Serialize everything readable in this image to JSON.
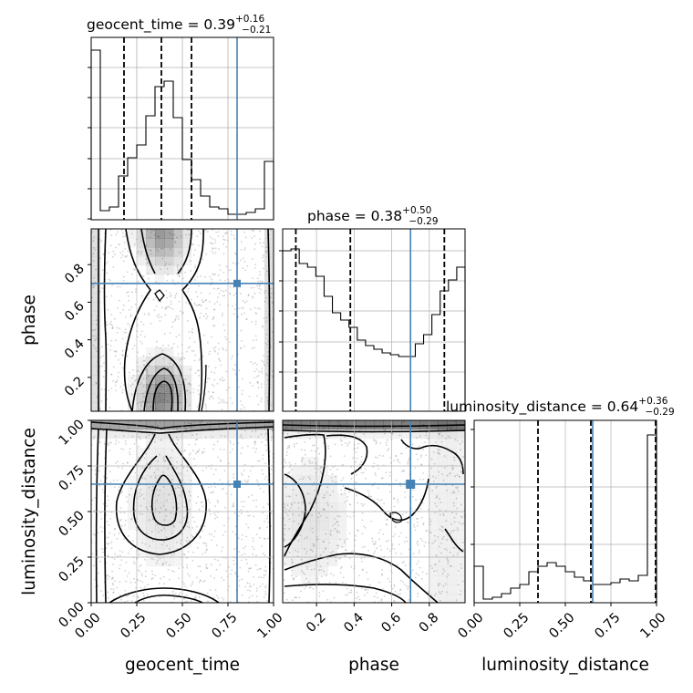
{
  "chart_data": {
    "type": "corner",
    "parameters": [
      "geocent_time",
      "phase",
      "luminosity_distance"
    ],
    "truths": {
      "geocent_time": 0.8,
      "phase": 0.7,
      "luminosity_distance": 0.65
    },
    "titles": {
      "geocent_time": {
        "label": "geocent_time = 0.39",
        "plus": "+0.16",
        "minus": "−0.21"
      },
      "phase": {
        "label": "phase = 0.38",
        "plus": "+0.50",
        "minus": "−0.29"
      },
      "luminosity_distance": {
        "label": "luminosity_distance = 0.64",
        "plus": "+0.36",
        "minus": "−0.29"
      }
    },
    "ranges": {
      "geocent_time": [
        0,
        1
      ],
      "phase": [
        0.02,
        0.99
      ],
      "luminosity_distance": [
        0,
        1
      ]
    },
    "quantiles": {
      "geocent_time": [
        0.18,
        0.385,
        0.55
      ],
      "phase": [
        0.09,
        0.38,
        0.88
      ],
      "luminosity_distance": [
        0.35,
        0.64,
        1.0
      ]
    },
    "ticks": {
      "geocent_time": {
        "values": [
          0,
          0.25,
          0.5,
          0.75,
          1.0
        ],
        "labels": [
          "0.00",
          "0.25",
          "0.50",
          "0.75",
          "1.00"
        ]
      },
      "phase_x": {
        "values": [
          0.2,
          0.4,
          0.6,
          0.8
        ],
        "labels": [
          "0.2",
          "0.4",
          "0.6",
          "0.8"
        ]
      },
      "phase_y": {
        "values": [
          0.2,
          0.4,
          0.6,
          0.8
        ],
        "labels": [
          "0.2",
          "0.4",
          "0.6",
          "0.8"
        ]
      },
      "luminosity_distance": {
        "values": [
          0,
          0.25,
          0.5,
          0.75,
          1.0
        ],
        "labels": [
          "0.00",
          "0.25",
          "0.50",
          "0.75",
          "1.00"
        ]
      }
    },
    "axis_labels": {
      "x": [
        "geocent_time",
        "phase",
        "luminosity_distance"
      ],
      "y": [
        "phase",
        "luminosity_distance"
      ]
    },
    "histograms": {
      "geocent_time": [
        0.93,
        0.05,
        0.07,
        0.24,
        0.34,
        0.41,
        0.57,
        0.73,
        0.76,
        0.56,
        0.33,
        0.22,
        0.13,
        0.07,
        0.06,
        0.03,
        0.03,
        0.04,
        0.06,
        0.32
      ],
      "phase": [
        0.88,
        0.89,
        0.81,
        0.79,
        0.74,
        0.63,
        0.54,
        0.5,
        0.46,
        0.39,
        0.36,
        0.34,
        0.32,
        0.31,
        0.3,
        0.3,
        0.37,
        0.42,
        0.53,
        0.66,
        0.72,
        0.79
      ],
      "luminosity_distance": [
        0.2,
        0.02,
        0.03,
        0.05,
        0.08,
        0.1,
        0.17,
        0.2,
        0.22,
        0.2,
        0.17,
        0.14,
        0.12,
        0.1,
        0.1,
        0.11,
        0.13,
        0.12,
        0.15,
        0.92
      ]
    },
    "colors": {
      "truth": "#4682b4",
      "contour": "#000000",
      "density": "#000000",
      "scatter": "#9a9a9a",
      "grid": "#b0b0b0"
    }
  }
}
